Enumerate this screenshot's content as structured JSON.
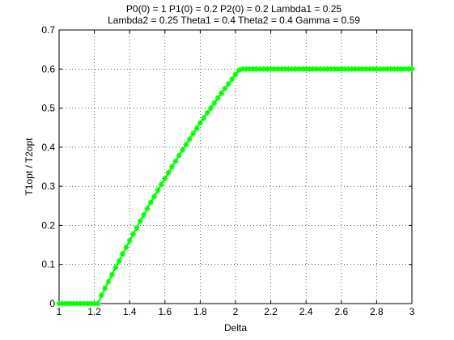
{
  "chart_data": {
    "type": "line",
    "title_lines": [
      "P0(0) = 1 P1(0) = 0.2 P2(0) = 0.2 Lambda1 = 0.25",
      "Lambda2 = 0.25 Theta1 = 0.4 Theta2 = 0.4 Gamma = 0.59"
    ],
    "xlabel": "Delta",
    "ylabel": "T1opt / T2opt",
    "xlim": [
      1,
      3
    ],
    "ylim": [
      0,
      0.7
    ],
    "xticks": [
      "1",
      "1.2",
      "1.4",
      "1.6",
      "1.8",
      "2",
      "2.2",
      "2.4",
      "2.6",
      "2.8",
      "3"
    ],
    "yticks": [
      "0",
      "0.1",
      "0.2",
      "0.3",
      "0.4",
      "0.5",
      "0.6",
      "0.7"
    ],
    "grid": true,
    "series": [
      {
        "color": "#00ff00",
        "marker": "asterisk",
        "x": [
          1.0,
          1.02,
          1.04,
          1.06,
          1.08,
          1.1,
          1.12,
          1.14,
          1.16,
          1.18,
          1.2,
          1.22,
          1.24,
          1.26,
          1.28,
          1.3,
          1.32,
          1.34,
          1.36,
          1.38,
          1.4,
          1.42,
          1.44,
          1.46,
          1.48,
          1.5,
          1.52,
          1.54,
          1.56,
          1.58,
          1.6,
          1.62,
          1.64,
          1.66,
          1.68,
          1.7,
          1.72,
          1.74,
          1.76,
          1.78,
          1.8,
          1.82,
          1.84,
          1.86,
          1.88,
          1.9,
          1.92,
          1.94,
          1.96,
          1.98,
          2.0,
          2.02,
          2.04,
          2.06,
          2.08,
          2.1,
          2.12,
          2.14,
          2.16,
          2.18,
          2.2,
          2.22,
          2.24,
          2.26,
          2.28,
          2.3,
          2.32,
          2.34,
          2.36,
          2.38,
          2.4,
          2.42,
          2.44,
          2.46,
          2.48,
          2.5,
          2.52,
          2.54,
          2.56,
          2.58,
          2.6,
          2.62,
          2.64,
          2.66,
          2.68,
          2.7,
          2.72,
          2.74,
          2.76,
          2.78,
          2.8,
          2.82,
          2.84,
          2.86,
          2.88,
          2.9,
          2.92,
          2.94,
          2.96,
          2.98,
          3.0
        ],
        "y": [
          0.0,
          0.0,
          0.0,
          0.0,
          0.0,
          0.0,
          0.0,
          0.0,
          0.0,
          0.0,
          0.0,
          0.0,
          0.021,
          0.039,
          0.056,
          0.074,
          0.092,
          0.109,
          0.127,
          0.144,
          0.161,
          0.178,
          0.194,
          0.211,
          0.227,
          0.243,
          0.259,
          0.274,
          0.29,
          0.305,
          0.32,
          0.335,
          0.35,
          0.364,
          0.379,
          0.393,
          0.407,
          0.421,
          0.435,
          0.448,
          0.462,
          0.475,
          0.488,
          0.5,
          0.513,
          0.526,
          0.538,
          0.55,
          0.562,
          0.574,
          0.586,
          0.597,
          0.6,
          0.6,
          0.6,
          0.6,
          0.6,
          0.6,
          0.6,
          0.6,
          0.6,
          0.6,
          0.6,
          0.6,
          0.6,
          0.6,
          0.6,
          0.6,
          0.6,
          0.6,
          0.6,
          0.6,
          0.6,
          0.6,
          0.6,
          0.6,
          0.6,
          0.6,
          0.6,
          0.6,
          0.6,
          0.6,
          0.6,
          0.6,
          0.6,
          0.6,
          0.6,
          0.6,
          0.6,
          0.6,
          0.6,
          0.6,
          0.6,
          0.6,
          0.6,
          0.6,
          0.6,
          0.6,
          0.6,
          0.6,
          0.6
        ]
      }
    ]
  }
}
